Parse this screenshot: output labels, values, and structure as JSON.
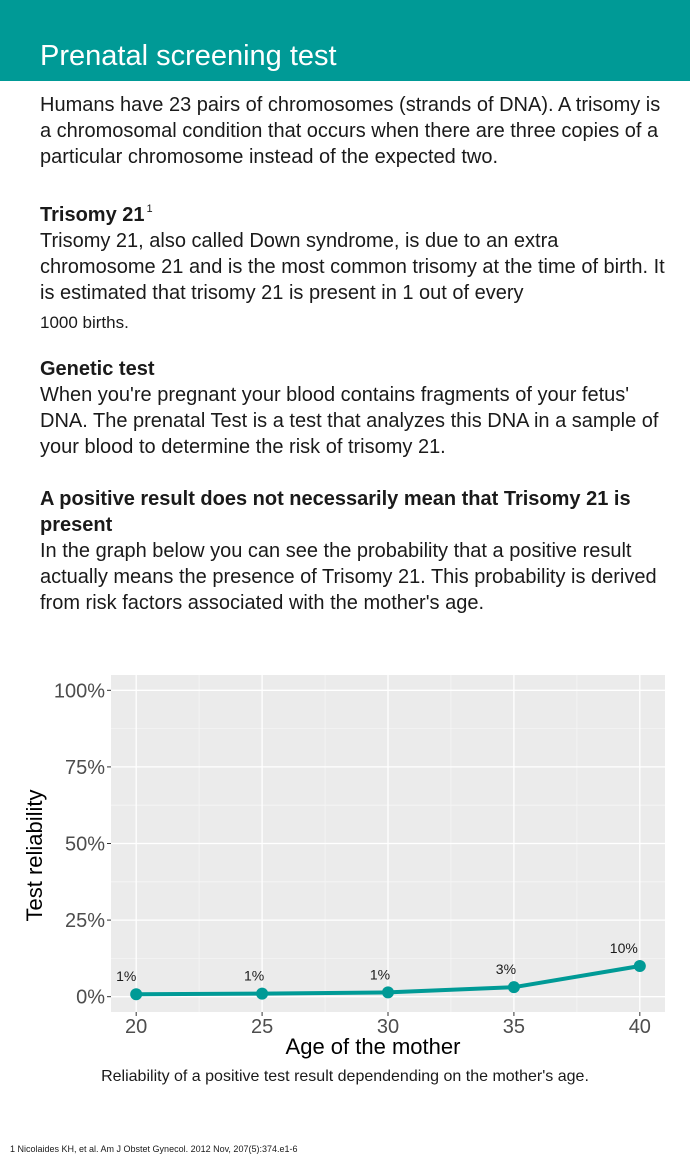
{
  "header": {
    "title": "Prenatal screening test"
  },
  "intro": "Humans have 23 pairs of chromosomes (strands of DNA). A trisomy is a chromosomal condition that occurs when there are three copies of a particular chromosome instead of the expected two.",
  "sections": [
    {
      "heading": "Trisomy 21",
      "sup": "1",
      "body": "Trisomy 21, also called Down syndrome, is due to an extra chromosome 21 and is the most common trisomy at the time of birth. It is estimated that trisomy 21 is present in 1 out of every",
      "body_tail": "1000 births."
    },
    {
      "heading": "Genetic test",
      "body": "When you're pregnant your blood contains fragments of your fetus' DNA. The prenatal Test is a test that analyzes this DNA in a sample of your blood to determine the risk of trisomy 21."
    },
    {
      "heading": "A positive result does not necessarily mean that Trisomy 21 is present",
      "body": "In the graph below you can see the probability that a positive result actually means the presence of Trisomy 21. This probability is derived from risk factors associated with the mother's age."
    }
  ],
  "chart_data": {
    "type": "line",
    "x": [
      20,
      25,
      30,
      35,
      40
    ],
    "values": [
      0.8,
      1.0,
      1.4,
      3.1,
      10.0
    ],
    "data_labels": [
      "1%",
      "1%",
      "1%",
      "3%",
      "10%"
    ],
    "xlabel": "Age of the mother",
    "ylabel": "Test reliability",
    "x_ticks": [
      "20",
      "25",
      "30",
      "35",
      "40"
    ],
    "y_ticks": [
      "0%",
      "25%",
      "50%",
      "75%",
      "100%"
    ],
    "y_tick_values": [
      0,
      25,
      50,
      75,
      100
    ],
    "xlim": [
      19,
      41
    ],
    "ylim": [
      -5,
      105
    ],
    "grid": true,
    "line_color": "#009a96",
    "panel_color": "#ebebeb"
  },
  "caption": "Reliability of a positive test result dependending on the mother's age.",
  "footnote": "1 Nicolaides KH, et al. Am J Obstet Gynecol. 2012 Nov, 207(5):374.e1-6"
}
